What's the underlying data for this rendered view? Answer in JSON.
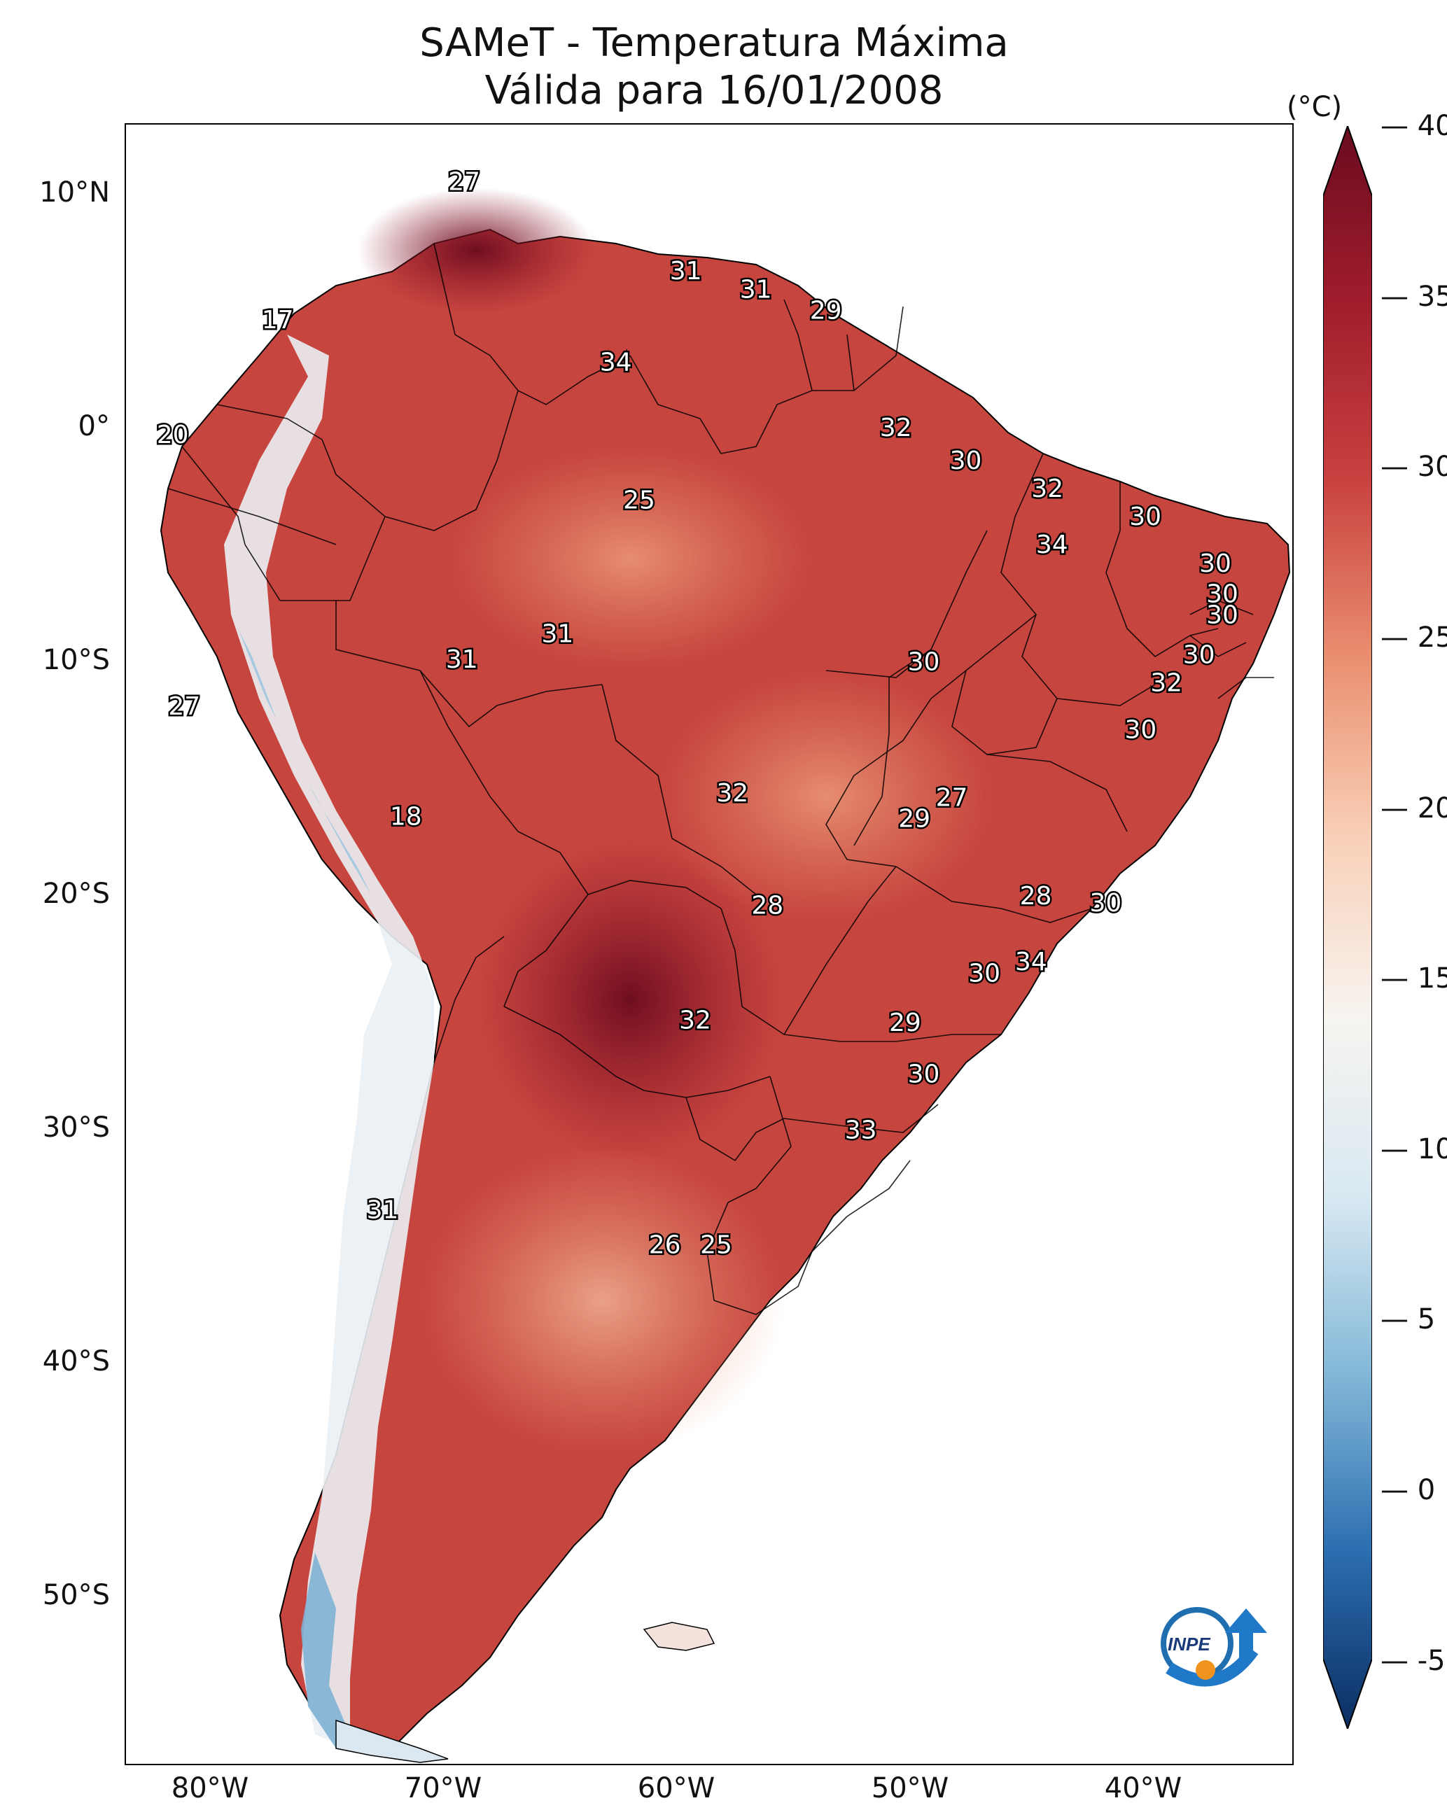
{
  "title": {
    "line1": "SAMeT - Temperatura Máxima",
    "line2": "Válida para 16/01/2008"
  },
  "axes": {
    "lat_labels": [
      "10°N",
      "0°",
      "10°S",
      "20°S",
      "30°S",
      "40°S",
      "50°S"
    ],
    "lon_labels": [
      "80°W",
      "70°W",
      "60°W",
      "50°W",
      "40°W"
    ]
  },
  "colorbar": {
    "unit": "(°C)",
    "ticks": [
      "40",
      "35",
      "30",
      "25",
      "20",
      "15",
      "10",
      "5",
      "0",
      "-5"
    ],
    "range": [
      -7,
      40
    ],
    "colors": [
      "#0b2e62",
      "#2c6eb0",
      "#83b8d8",
      "#d9e9f2",
      "#f7f4f0",
      "#f9d0b8",
      "#ea9070",
      "#c94240",
      "#a11d2c",
      "#6a0b1f"
    ]
  },
  "map": {
    "extent": {
      "lon": [
        -82,
        -32
      ],
      "lat": [
        -57,
        13
      ]
    },
    "logo_text": "INPE",
    "station_values": [
      {
        "value": "27",
        "lon": -67.5,
        "lat": 10.5
      },
      {
        "value": "31",
        "lon": -58.0,
        "lat": 6.7
      },
      {
        "value": "31",
        "lon": -55.0,
        "lat": 5.9
      },
      {
        "value": "29",
        "lon": -52.0,
        "lat": 5.0
      },
      {
        "value": "17",
        "lon": -75.5,
        "lat": 4.6
      },
      {
        "value": "34",
        "lon": -61.0,
        "lat": 2.8
      },
      {
        "value": "20",
        "lon": -80.0,
        "lat": -0.3
      },
      {
        "value": "32",
        "lon": -49.0,
        "lat": 0.0
      },
      {
        "value": "30",
        "lon": -46.0,
        "lat": -1.4
      },
      {
        "value": "32",
        "lon": -42.5,
        "lat": -2.6
      },
      {
        "value": "25",
        "lon": -60.0,
        "lat": -3.1
      },
      {
        "value": "30",
        "lon": -38.3,
        "lat": -3.8
      },
      {
        "value": "34",
        "lon": -42.3,
        "lat": -5.0
      },
      {
        "value": "30",
        "lon": -35.3,
        "lat": -5.8
      },
      {
        "value": "30",
        "lon": -35.0,
        "lat": -7.1
      },
      {
        "value": "30",
        "lon": -35.0,
        "lat": -8.0
      },
      {
        "value": "31",
        "lon": -63.5,
        "lat": -8.8
      },
      {
        "value": "31",
        "lon": -67.6,
        "lat": -9.9
      },
      {
        "value": "30",
        "lon": -47.8,
        "lat": -10.0
      },
      {
        "value": "30",
        "lon": -36.0,
        "lat": -9.7
      },
      {
        "value": "32",
        "lon": -37.4,
        "lat": -10.9
      },
      {
        "value": "27",
        "lon": -79.5,
        "lat": -11.9
      },
      {
        "value": "30",
        "lon": -38.5,
        "lat": -12.9
      },
      {
        "value": "27",
        "lon": -46.6,
        "lat": -15.8
      },
      {
        "value": "32",
        "lon": -56.0,
        "lat": -15.6
      },
      {
        "value": "29",
        "lon": -48.2,
        "lat": -16.7
      },
      {
        "value": "18",
        "lon": -70.0,
        "lat": -16.6
      },
      {
        "value": "28",
        "lon": -43.0,
        "lat": -20.0
      },
      {
        "value": "28",
        "lon": -54.5,
        "lat": -20.4
      },
      {
        "value": "30",
        "lon": -40.0,
        "lat": -20.3
      },
      {
        "value": "34",
        "lon": -43.2,
        "lat": -22.8
      },
      {
        "value": "30",
        "lon": -45.2,
        "lat": -23.3
      },
      {
        "value": "32",
        "lon": -57.6,
        "lat": -25.3
      },
      {
        "value": "29",
        "lon": -48.6,
        "lat": -25.4
      },
      {
        "value": "30",
        "lon": -47.8,
        "lat": -27.6
      },
      {
        "value": "33",
        "lon": -50.5,
        "lat": -30.0
      },
      {
        "value": "31",
        "lon": -71.0,
        "lat": -33.4
      },
      {
        "value": "26",
        "lon": -58.9,
        "lat": -34.9
      },
      {
        "value": "25",
        "lon": -56.7,
        "lat": -34.9
      }
    ]
  }
}
